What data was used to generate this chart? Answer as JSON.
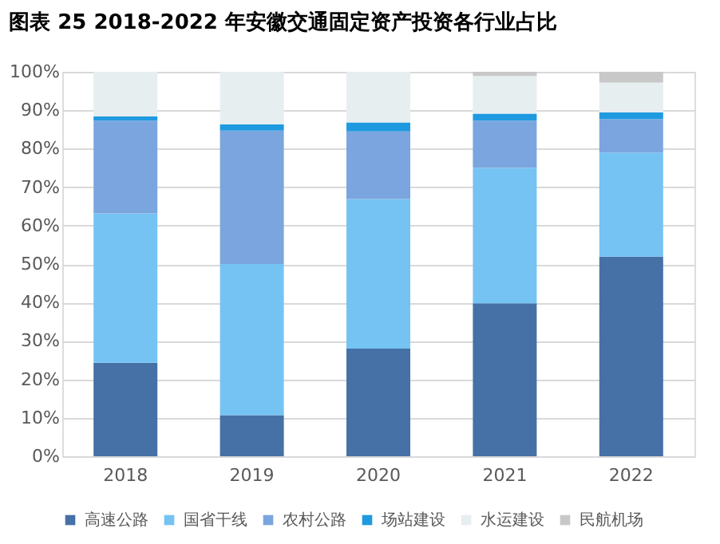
{
  "chart_data": {
    "type": "bar",
    "stacked": true,
    "title": "图表 25 2018-2022 年安徽交通固定资产投资各行业占比",
    "categories": [
      "2018",
      "2019",
      "2020",
      "2021",
      "2022"
    ],
    "series": [
      {
        "name": "高速公路",
        "color": "#4671a6",
        "values": [
          24.3,
          10.7,
          28.0,
          39.8,
          51.9
        ]
      },
      {
        "name": "国省干线",
        "color": "#75c3f3",
        "values": [
          38.9,
          39.3,
          38.9,
          35.2,
          27.1
        ]
      },
      {
        "name": "农村公路",
        "color": "#7ba5de",
        "values": [
          24.1,
          34.7,
          17.6,
          12.3,
          8.7
        ]
      },
      {
        "name": "场站建设",
        "color": "#1f9ae0",
        "values": [
          1.1,
          1.6,
          2.3,
          1.8,
          1.7
        ]
      },
      {
        "name": "水运建设",
        "color": "#e6eef0",
        "values": [
          11.6,
          13.7,
          13.2,
          9.8,
          7.8
        ]
      },
      {
        "name": "民航机场",
        "color": "#c8c8c8",
        "values": [
          0,
          0,
          0,
          1.1,
          2.8
        ]
      }
    ],
    "ylim": [
      0,
      100
    ],
    "yticks": [
      {
        "value": 0,
        "label": "0%"
      },
      {
        "value": 10,
        "label": "10%"
      },
      {
        "value": 20,
        "label": "20%"
      },
      {
        "value": 30,
        "label": "30%"
      },
      {
        "value": 40,
        "label": "40%"
      },
      {
        "value": 50,
        "label": "50%"
      },
      {
        "value": 60,
        "label": "60%"
      },
      {
        "value": 70,
        "label": "70%"
      },
      {
        "value": 80,
        "label": "80%"
      },
      {
        "value": 90,
        "label": "90%"
      },
      {
        "value": 100,
        "label": "100%"
      }
    ],
    "grid": "y",
    "legend": "bottom"
  }
}
